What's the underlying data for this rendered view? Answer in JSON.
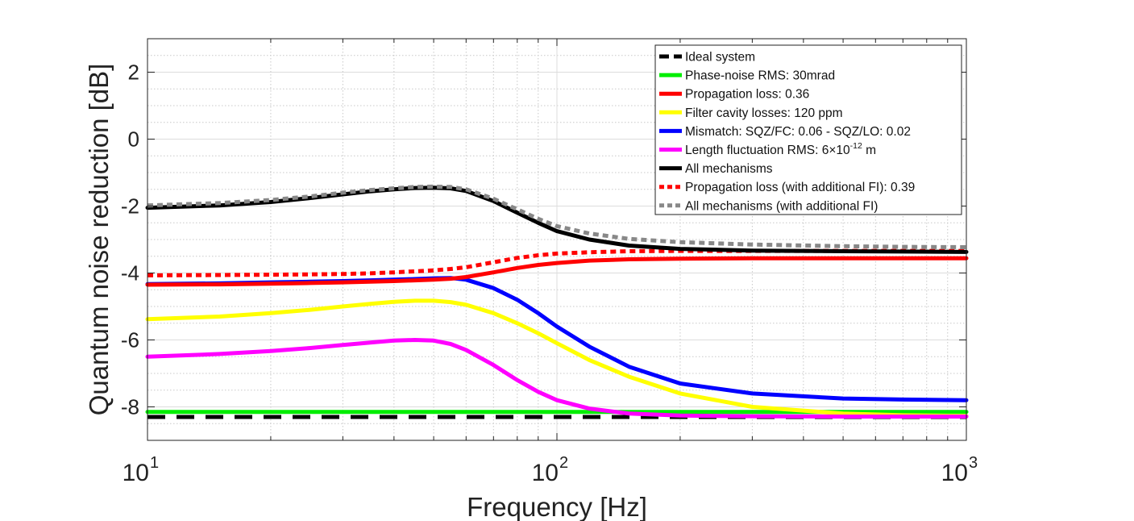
{
  "chart_data": {
    "type": "line",
    "xlabel": "Frequency [Hz]",
    "ylabel": "Quantum noise reduction [dB]",
    "xscale": "log",
    "xlim": [
      10,
      1000
    ],
    "ylim": [
      -9,
      3
    ],
    "yticks": [
      2,
      0,
      -2,
      -4,
      -6,
      -8
    ],
    "ytick_labels": [
      "2",
      "0",
      "-2",
      "-4",
      "-6",
      "-8"
    ],
    "xticks": [
      {
        "value": 10,
        "base": "10",
        "exp": "1"
      },
      {
        "value": 100,
        "base": "10",
        "exp": "2"
      },
      {
        "value": 1000,
        "base": "10",
        "exp": "3"
      }
    ],
    "grid": true,
    "minor_grid": true,
    "legend_position": "top-right",
    "x": [
      10,
      15,
      20,
      25,
      30,
      35,
      40,
      45,
      50,
      55,
      60,
      70,
      80,
      90,
      100,
      120,
      150,
      200,
      300,
      500,
      700,
      1000
    ],
    "series": [
      {
        "name": "Ideal system",
        "color": "#000000",
        "dash": "dashed",
        "values": [
          -8.3,
          -8.3,
          -8.3,
          -8.3,
          -8.3,
          -8.3,
          -8.3,
          -8.3,
          -8.3,
          -8.3,
          -8.3,
          -8.3,
          -8.3,
          -8.3,
          -8.3,
          -8.3,
          -8.3,
          -8.3,
          -8.3,
          -8.3,
          -8.3,
          -8.3
        ]
      },
      {
        "name": "Phase-noise RMS: 30mrad",
        "color": "#00ee00",
        "dash": "solid",
        "values": [
          -8.15,
          -8.15,
          -8.15,
          -8.15,
          -8.15,
          -8.15,
          -8.15,
          -8.15,
          -8.15,
          -8.15,
          -8.15,
          -8.15,
          -8.15,
          -8.15,
          -8.15,
          -8.15,
          -8.15,
          -8.15,
          -8.15,
          -8.15,
          -8.15,
          -8.15
        ]
      },
      {
        "name": "Propagation loss: 0.36",
        "color": "#ff0000",
        "dash": "solid",
        "values": [
          -4.35,
          -4.34,
          -4.32,
          -4.3,
          -4.28,
          -4.26,
          -4.24,
          -4.22,
          -4.2,
          -4.17,
          -4.12,
          -3.98,
          -3.85,
          -3.76,
          -3.7,
          -3.63,
          -3.59,
          -3.57,
          -3.56,
          -3.56,
          -3.56,
          -3.56
        ]
      },
      {
        "name": "Filter cavity losses: 120 ppm",
        "color": "#ffff00",
        "dash": "solid",
        "values": [
          -5.38,
          -5.3,
          -5.2,
          -5.1,
          -5.0,
          -4.92,
          -4.86,
          -4.83,
          -4.83,
          -4.87,
          -4.95,
          -5.2,
          -5.5,
          -5.8,
          -6.1,
          -6.6,
          -7.1,
          -7.6,
          -8.0,
          -8.2,
          -8.25,
          -8.27
        ]
      },
      {
        "name": "Mismatch: SQZ/FC: 0.06 - SQZ/LO: 0.02",
        "color": "#0000ff",
        "dash": "solid",
        "values": [
          -4.33,
          -4.31,
          -4.28,
          -4.26,
          -4.24,
          -4.22,
          -4.2,
          -4.18,
          -4.16,
          -4.15,
          -4.2,
          -4.45,
          -4.8,
          -5.2,
          -5.6,
          -6.2,
          -6.8,
          -7.3,
          -7.6,
          -7.75,
          -7.78,
          -7.8
        ]
      },
      {
        "name": "Length fluctuation RMS: 6×10<sup>-12</sup> m",
        "name_parts": {
          "before": "Length fluctuation RMS: 6×10",
          "sup": "-12",
          "after": " m"
        },
        "color": "#ff00ff",
        "dash": "solid",
        "values": [
          -6.5,
          -6.42,
          -6.33,
          -6.24,
          -6.15,
          -6.08,
          -6.02,
          -6.0,
          -6.02,
          -6.12,
          -6.3,
          -6.75,
          -7.2,
          -7.55,
          -7.8,
          -8.05,
          -8.2,
          -8.26,
          -8.28,
          -8.29,
          -8.29,
          -8.29
        ]
      },
      {
        "name": "All mechanisms",
        "color": "#000000",
        "dash": "solid",
        "values": [
          -2.05,
          -1.98,
          -1.88,
          -1.76,
          -1.65,
          -1.56,
          -1.5,
          -1.46,
          -1.45,
          -1.47,
          -1.55,
          -1.85,
          -2.2,
          -2.5,
          -2.75,
          -3.0,
          -3.18,
          -3.28,
          -3.33,
          -3.35,
          -3.36,
          -3.37
        ]
      },
      {
        "name": "Propagation loss (with additional FI): 0.39",
        "color": "#ff0000",
        "dash": "dotted",
        "values": [
          -4.07,
          -4.06,
          -4.05,
          -4.04,
          -4.03,
          -4.01,
          -3.98,
          -3.95,
          -3.92,
          -3.88,
          -3.83,
          -3.68,
          -3.55,
          -3.47,
          -3.42,
          -3.38,
          -3.35,
          -3.34,
          -3.34,
          -3.34,
          -3.34,
          -3.34
        ]
      },
      {
        "name": "All mechanisms (with additional FI)",
        "color": "#888888",
        "dash": "dotted",
        "values": [
          -1.98,
          -1.91,
          -1.82,
          -1.71,
          -1.6,
          -1.52,
          -1.47,
          -1.43,
          -1.42,
          -1.43,
          -1.5,
          -1.78,
          -2.1,
          -2.38,
          -2.6,
          -2.82,
          -2.98,
          -3.08,
          -3.15,
          -3.2,
          -3.22,
          -3.23
        ]
      }
    ]
  }
}
